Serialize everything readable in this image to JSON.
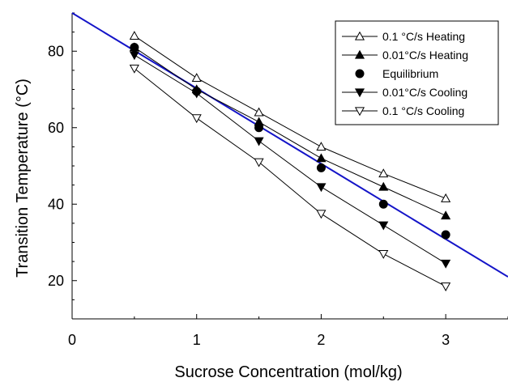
{
  "chart_data": {
    "type": "line",
    "title": "",
    "xlabel": "Sucrose Concentration (mol/kg)",
    "ylabel": "Transition Temperature (°C)",
    "xlim": [
      0,
      3.5
    ],
    "ylim": [
      10,
      90
    ],
    "xticks": [
      0,
      1,
      2,
      3
    ],
    "yticks": [
      20,
      40,
      60,
      80
    ],
    "grid": false,
    "legend_position": "top-right",
    "x": [
      0.5,
      1.0,
      1.5,
      2.0,
      2.5,
      3.0
    ],
    "series": [
      {
        "name": "0.1 °C/s Heating",
        "marker": "triangle-up-open",
        "values": [
          84,
          73,
          64,
          55,
          48,
          41.5
        ]
      },
      {
        "name": "0.01°C/s Heating",
        "marker": "triangle-up-filled",
        "values": [
          81,
          70,
          61.5,
          52,
          44.5,
          37
        ]
      },
      {
        "name": "Equilibrium",
        "marker": "circle-filled",
        "line": false,
        "values": [
          81,
          69.5,
          60,
          49.5,
          40,
          32
        ]
      },
      {
        "name": "0.01°C/s Cooling",
        "marker": "triangle-down-filled",
        "values": [
          79,
          69,
          56.5,
          44.5,
          34.5,
          24.5
        ]
      },
      {
        "name": "0.1 °C/s Cooling",
        "marker": "triangle-down-open",
        "values": [
          75.5,
          62.5,
          51,
          37.5,
          27,
          18.5
        ]
      }
    ],
    "fit_line": {
      "x": [
        0,
        3.5
      ],
      "y": [
        90,
        21
      ],
      "color": "#1414c8"
    }
  }
}
